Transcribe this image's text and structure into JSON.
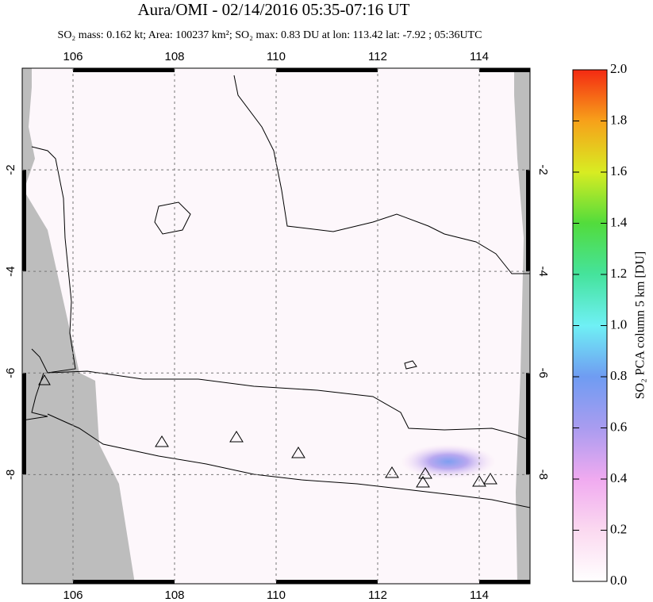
{
  "chart_data": {
    "type": "map",
    "title": "Aura/OMI - 02/14/2016 05:35-07:16 UT",
    "subtitle": "SO₂ mass: 0.162 kt; Area: 100237 km²; SO₂ max: 0.83 DU at lon: 113.42 lat: -7.92 ; 05:36UTC",
    "xlim": [
      105,
      115
    ],
    "xticks": [
      106,
      108,
      110,
      112,
      114
    ],
    "ylim": [
      -10.15,
      0
    ],
    "yticks": [
      -2,
      -4,
      -6,
      -8
    ],
    "grid": true,
    "colorbar": {
      "label": "SO₂ PCA column 5 km [DU]",
      "lim": [
        0,
        2
      ],
      "ticks": [
        {
          "value": 0,
          "label": "0.0"
        },
        {
          "value": 0.2,
          "label": "0.2"
        },
        {
          "value": 0.4,
          "label": "0.4"
        },
        {
          "value": 0.6,
          "label": "0.6"
        },
        {
          "value": 0.8,
          "label": "0.8"
        },
        {
          "value": 1,
          "label": "1.0"
        },
        {
          "value": 1.2,
          "label": "1.2"
        },
        {
          "value": 1.4,
          "label": "1.4"
        },
        {
          "value": 1.6,
          "label": "1.6"
        },
        {
          "value": 1.8,
          "label": "1.8"
        },
        {
          "value": 2,
          "label": "2.0"
        }
      ]
    }
  }
}
